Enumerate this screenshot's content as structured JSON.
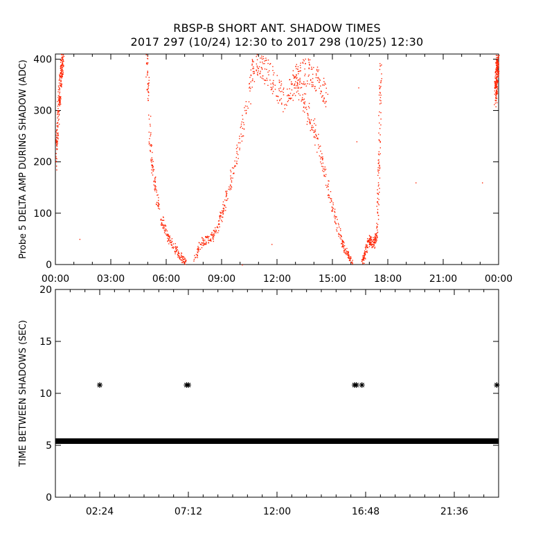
{
  "header": {
    "title": "RBSP-B SHORT ANT. SHADOW TIMES",
    "subtitle": "2017 297 (10/24) 12:30 to 2017 298 (10/25) 12:30"
  },
  "colors": {
    "top_series": "#ff2200",
    "bottom_series": "#000000",
    "axes": "#000000"
  },
  "chart_data": [
    {
      "type": "scatter",
      "ylabel": "Probe 5 DELTA AMP DURING SHADOW (ADC)",
      "xlabel": "",
      "xlim": [
        0,
        24
      ],
      "ylim": [
        0,
        410
      ],
      "x_tick_labels": [
        "00:00",
        "03:00",
        "06:00",
        "09:00",
        "12:00",
        "15:00",
        "18:00",
        "21:00",
        "00:00"
      ],
      "x_tick_values": [
        0,
        3,
        6,
        9,
        12,
        15,
        18,
        21,
        24
      ],
      "y_tick_values": [
        0,
        100,
        200,
        300,
        400
      ],
      "y_tick_labels": [
        "0",
        "100",
        "200",
        "300",
        "400"
      ],
      "series_segments": [
        {
          "x": [
            0.0,
            0.15,
            0.3,
            0.4
          ],
          "y": [
            200,
            310,
            380,
            410
          ]
        },
        {
          "x": [
            4.9,
            5.0,
            5.1,
            5.25,
            5.45,
            5.7,
            6.0,
            6.3,
            6.6,
            6.85,
            7.05
          ],
          "y": [
            400,
            350,
            250,
            190,
            130,
            90,
            60,
            40,
            25,
            12,
            5
          ]
        },
        {
          "x": [
            7.5,
            7.7,
            7.9,
            8.2,
            8.5,
            8.8,
            9.1,
            9.4,
            9.7,
            10.0,
            10.3,
            10.6,
            10.85
          ],
          "y": [
            5,
            30,
            45,
            50,
            55,
            75,
            110,
            150,
            200,
            250,
            300,
            360,
            410
          ]
        },
        {
          "x": [
            10.9,
            11.3,
            11.8,
            12.3,
            12.9,
            13.4,
            13.9,
            14.3,
            14.7
          ],
          "y": [
            400,
            380,
            360,
            320,
            350,
            380,
            370,
            350,
            330
          ]
        },
        {
          "x": [
            12.9,
            13.3,
            13.7,
            14.1,
            14.5,
            14.9,
            15.2,
            15.5,
            15.8,
            16.1
          ],
          "y": [
            380,
            330,
            290,
            250,
            190,
            130,
            80,
            45,
            20,
            5
          ]
        },
        {
          "x": [
            16.6,
            16.8,
            17.0,
            17.2,
            17.4,
            17.5,
            17.6
          ],
          "y": [
            5,
            30,
            50,
            40,
            60,
            200,
            390
          ]
        },
        {
          "x": [
            23.8,
            23.9,
            24.0
          ],
          "y": [
            330,
            380,
            410
          ]
        }
      ],
      "outliers": [
        {
          "x": 1.3,
          "y": 50
        },
        {
          "x": 10.1,
          "y": 0
        },
        {
          "x": 11.7,
          "y": 40
        },
        {
          "x": 16.3,
          "y": 240
        },
        {
          "x": 16.4,
          "y": 345
        },
        {
          "x": 19.5,
          "y": 160
        },
        {
          "x": 23.1,
          "y": 160
        }
      ]
    },
    {
      "type": "scatter",
      "ylabel": "TIME BETWEEN SHADOWS (SEC)",
      "xlabel": "",
      "xlim": [
        0,
        24
      ],
      "ylim": [
        0,
        20
      ],
      "x_tick_labels": [
        "02:24",
        "07:12",
        "12:00",
        "16:48",
        "21:36"
      ],
      "x_tick_values": [
        2.4,
        7.2,
        12.0,
        16.8,
        21.6
      ],
      "y_tick_values": [
        0,
        5,
        10,
        15,
        20
      ],
      "y_tick_labels": [
        "0",
        "5",
        "10",
        "15",
        "20"
      ],
      "baseline_value": 5.4,
      "baseline_range": [
        0.0,
        24.0
      ],
      "points": [
        {
          "x": 2.4,
          "y": 10.8
        },
        {
          "x": 7.1,
          "y": 10.8
        },
        {
          "x": 7.2,
          "y": 10.8
        },
        {
          "x": 16.2,
          "y": 10.8
        },
        {
          "x": 16.3,
          "y": 10.8
        },
        {
          "x": 16.6,
          "y": 10.8
        },
        {
          "x": 23.9,
          "y": 10.8
        }
      ]
    }
  ]
}
